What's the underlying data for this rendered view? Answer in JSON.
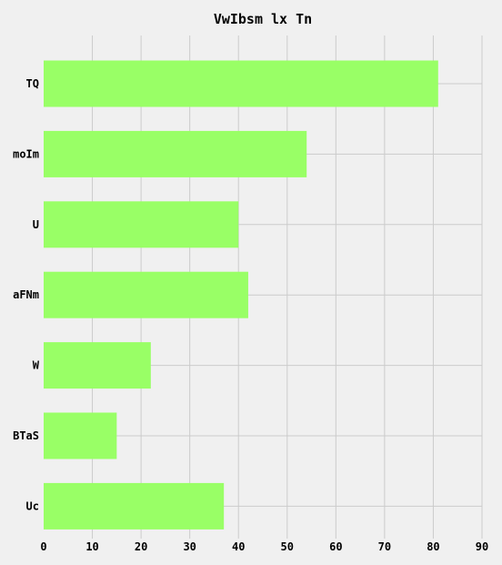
{
  "chart_data": {
    "type": "bar",
    "orientation": "horizontal",
    "title": "VwIbsm lx Tn",
    "xlabel": "",
    "ylabel": "",
    "categories": [
      "TQ",
      "moIm",
      "U",
      "aFNm",
      "W",
      "BTaS",
      "Uc"
    ],
    "values": [
      81,
      54,
      40,
      42,
      22,
      15,
      37
    ],
    "xlim": [
      0,
      90
    ],
    "xticks": [
      0,
      10,
      20,
      30,
      40,
      50,
      60,
      70,
      80,
      90
    ],
    "grid": true,
    "bar_color": "#99ff66"
  }
}
